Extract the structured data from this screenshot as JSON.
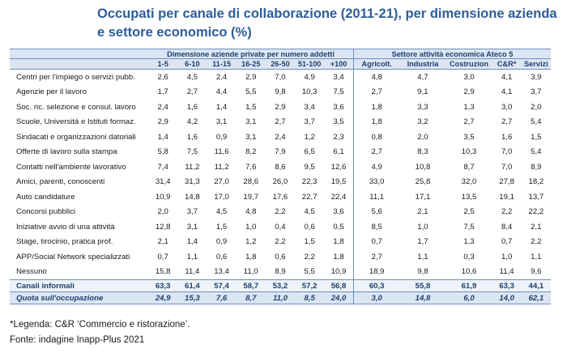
{
  "title": "Occupati per canale di collaborazione (2011-21), per dimensione azienda e settore economico (%)",
  "group_headers": {
    "size": "Dimensione aziende private per numero addetti",
    "sector": "Settore attività economica Ateco 5"
  },
  "columns": [
    "1-5",
    "6-10",
    "11-15",
    "16-25",
    "26-50",
    "51-100",
    "+100",
    "Agricolt.",
    "Industria",
    "Costruzion",
    "C&R*",
    "Servizi"
  ],
  "rows": [
    {
      "label": "Centri per l'impiego o servizi pubb.",
      "values": [
        "2,6",
        "4,5",
        "2,4",
        "2,9",
        "7,0",
        "4,9",
        "3,4",
        "4,8",
        "4,7",
        "3,0",
        "4,1",
        "3,9"
      ]
    },
    {
      "label": "Agenzie per il lavoro",
      "values": [
        "1,7",
        "2,7",
        "4,4",
        "5,5",
        "9,8",
        "10,3",
        "7,5",
        "2,7",
        "9,1",
        "2,9",
        "4,1",
        "3,7"
      ]
    },
    {
      "label": "Soc. ric. selezione e consul. lavoro",
      "values": [
        "2,4",
        "1,6",
        "1,4",
        "1,5",
        "2,9",
        "3,4",
        "3,6",
        "1,8",
        "3,3",
        "1,3",
        "3,0",
        "2,0"
      ]
    },
    {
      "label": "Scuole, Università e Istituti formaz.",
      "values": [
        "2,9",
        "4,2",
        "3,1",
        "3,1",
        "2,7",
        "3,7",
        "3,5",
        "1,8",
        "3,2",
        "2,7",
        "2,7",
        "5,4"
      ]
    },
    {
      "label": "Sindacati e organizzazioni datoriali",
      "values": [
        "1,4",
        "1,6",
        "0,9",
        "3,1",
        "2,4",
        "1,2",
        "2,3",
        "0,8",
        "2,0",
        "3,5",
        "1,6",
        "1,5"
      ]
    },
    {
      "label": "Offerte di lavoro sulla stampa",
      "values": [
        "5,8",
        "7,5",
        "11,6",
        "8,2",
        "7,9",
        "6,5",
        "6,1",
        "2,7",
        "8,3",
        "10,3",
        "7,0",
        "5,4"
      ]
    },
    {
      "label": "Contatti nell'ambiente lavorativo",
      "values": [
        "7,4",
        "11,2",
        "11,2",
        "7,6",
        "8,6",
        "9,5",
        "12,6",
        "4,9",
        "10,8",
        "8,7",
        "7,0",
        "8,9"
      ]
    },
    {
      "label": "Amici, parenti, conoscenti",
      "values": [
        "31,4",
        "31,3",
        "27,0",
        "28,6",
        "26,0",
        "22,3",
        "19,5",
        "33,0",
        "25,8",
        "32,0",
        "27,8",
        "18,2"
      ]
    },
    {
      "label": "Auto candidature",
      "values": [
        "10,9",
        "14,8",
        "17,0",
        "19,7",
        "17,6",
        "22,7",
        "22,4",
        "11,1",
        "17,1",
        "13,5",
        "19,1",
        "13,7"
      ]
    },
    {
      "label": "Concorsi pubblici",
      "values": [
        "2,0",
        "3,7",
        "4,5",
        "4,8",
        "2,2",
        "4,5",
        "3,6",
        "5,6",
        "2,1",
        "2,5",
        "2,2",
        "22,2"
      ]
    },
    {
      "label": "Iniziative avvio di una attività",
      "values": [
        "12,8",
        "3,1",
        "1,5",
        "1,0",
        "0,4",
        "0,6",
        "0,5",
        "8,5",
        "1,0",
        "7,5",
        "8,4",
        "2,1"
      ]
    },
    {
      "label": "Stage, tirocinio, pratica prof.",
      "values": [
        "2,1",
        "1,4",
        "0,9",
        "1,2",
        "2,2",
        "1,5",
        "1,8",
        "0,7",
        "1,7",
        "1,3",
        "0,7",
        "2,2"
      ]
    },
    {
      "label": "APP/Social Network specializzati",
      "values": [
        "0,7",
        "1,1",
        "0,6",
        "1,8",
        "0,6",
        "2,2",
        "1,8",
        "2,7",
        "1,1",
        "0,3",
        "1,0",
        "1,1"
      ]
    },
    {
      "label": "Nessuno",
      "values": [
        "15,8",
        "11,4",
        "13,4",
        "11,0",
        "8,9",
        "5,5",
        "10,9",
        "18,9",
        "9,8",
        "10,6",
        "11,4",
        "9,6"
      ]
    }
  ],
  "total_row": {
    "label": "Canali informali",
    "values": [
      "63,3",
      "61,4",
      "57,4",
      "58,7",
      "53,2",
      "57,2",
      "56,8",
      "60,3",
      "55,8",
      "61,9",
      "63,3",
      "44,1"
    ]
  },
  "quota_row": {
    "label": "Quota sull'occupazione",
    "values": [
      "24,9",
      "15,3",
      "7,6",
      "8,7",
      "11,0",
      "8,5",
      "24,0",
      "3,0",
      "14,8",
      "6,0",
      "14,0",
      "62,1"
    ]
  },
  "notes": {
    "legend": "*Legenda: C&R ‘Commercio e ristorazione’.",
    "source": "Fonte: indagine Inapp-Plus 2021"
  }
}
